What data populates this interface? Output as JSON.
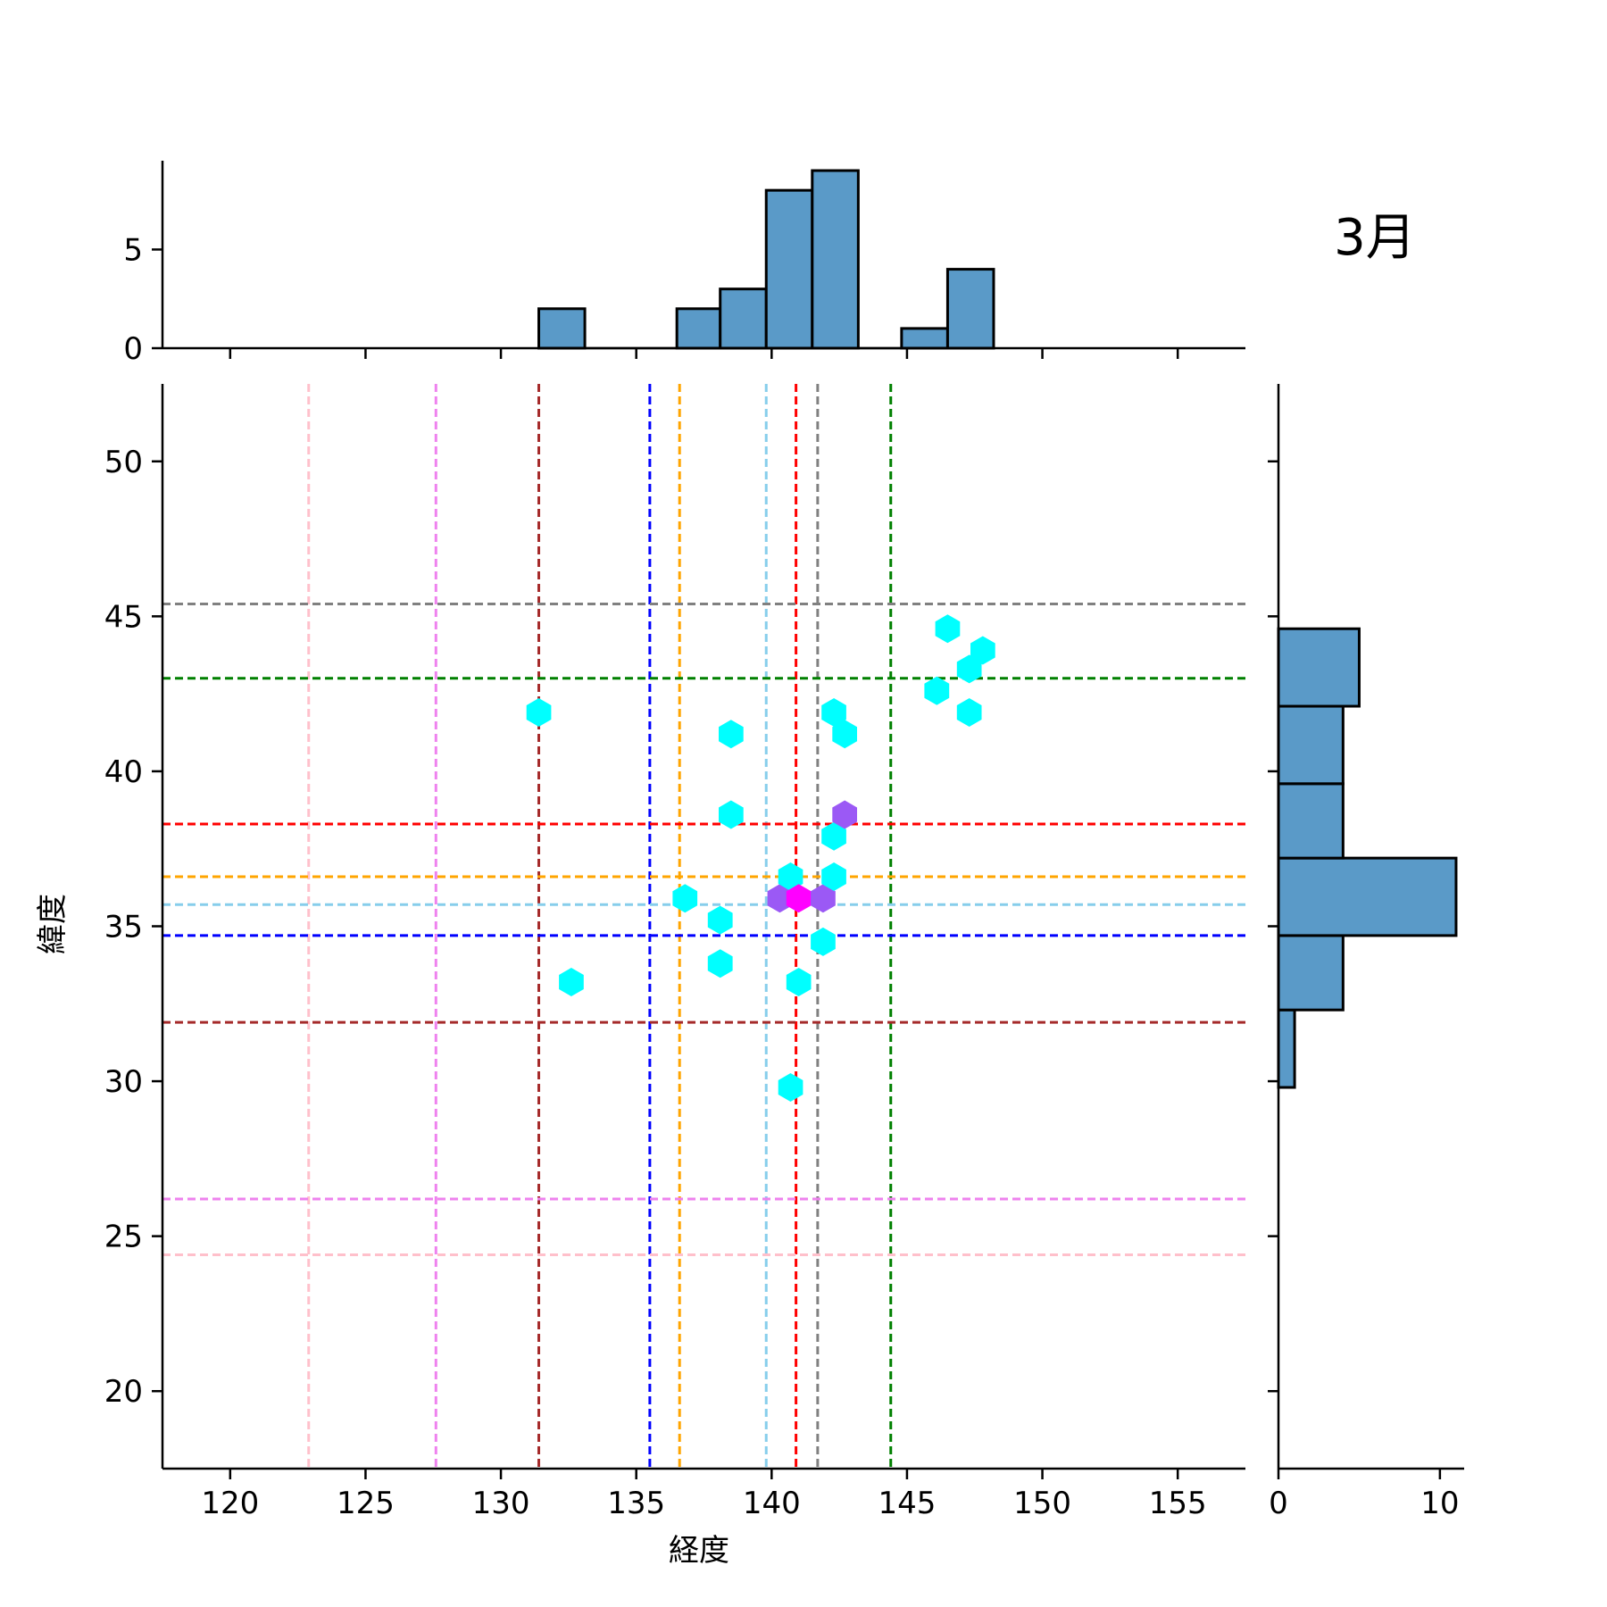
{
  "chart_data": {
    "type": "hexbin-joint",
    "title": "3月",
    "xlabel": "経度",
    "ylabel": "緯度",
    "xlim": [
      117.5,
      157.5
    ],
    "ylim": [
      17.5,
      52.5
    ],
    "x_ticks": [
      120,
      125,
      130,
      135,
      140,
      145,
      150,
      155
    ],
    "y_ticks": [
      20,
      25,
      30,
      35,
      40,
      45,
      50
    ],
    "grid": false,
    "hexbins": [
      {
        "x": 131.4,
        "y": 41.9,
        "count": 1
      },
      {
        "x": 132.6,
        "y": 33.2,
        "count": 1
      },
      {
        "x": 136.8,
        "y": 35.9,
        "count": 1
      },
      {
        "x": 138.1,
        "y": 35.2,
        "count": 1
      },
      {
        "x": 138.1,
        "y": 33.8,
        "count": 1
      },
      {
        "x": 138.5,
        "y": 41.2,
        "count": 1
      },
      {
        "x": 138.5,
        "y": 38.6,
        "count": 1
      },
      {
        "x": 140.3,
        "y": 35.9,
        "count": 2
      },
      {
        "x": 140.7,
        "y": 36.6,
        "count": 1
      },
      {
        "x": 140.7,
        "y": 29.8,
        "count": 1
      },
      {
        "x": 141.0,
        "y": 35.9,
        "count": 3
      },
      {
        "x": 141.0,
        "y": 33.2,
        "count": 1
      },
      {
        "x": 141.9,
        "y": 35.9,
        "count": 2
      },
      {
        "x": 141.9,
        "y": 34.5,
        "count": 1
      },
      {
        "x": 142.3,
        "y": 41.9,
        "count": 1
      },
      {
        "x": 142.3,
        "y": 37.9,
        "count": 1
      },
      {
        "x": 142.3,
        "y": 36.6,
        "count": 1
      },
      {
        "x": 142.7,
        "y": 41.2,
        "count": 1
      },
      {
        "x": 142.7,
        "y": 38.6,
        "count": 2
      },
      {
        "x": 146.1,
        "y": 42.6,
        "count": 1
      },
      {
        "x": 146.5,
        "y": 44.6,
        "count": 1
      },
      {
        "x": 147.3,
        "y": 43.3,
        "count": 1
      },
      {
        "x": 147.3,
        "y": 41.9,
        "count": 1
      },
      {
        "x": 147.8,
        "y": 43.9,
        "count": 1
      }
    ],
    "hexbin_colors": {
      "1": "#00ffff",
      "2": "#9b59f5",
      "3": "#ff00ff"
    },
    "reference_lines": [
      {
        "color": "#ffc0cb",
        "x": 122.9,
        "y": 24.4
      },
      {
        "color": "#ee82ee",
        "x": 127.6,
        "y": 26.2
      },
      {
        "color": "#a52a2a",
        "x": 131.4,
        "y": 31.9
      },
      {
        "color": "#0000ff",
        "x": 135.5,
        "y": 34.7
      },
      {
        "color": "#ffa500",
        "x": 136.6,
        "y": 36.6
      },
      {
        "color": "#87ceeb",
        "x": 139.8,
        "y": 35.7
      },
      {
        "color": "#ff0000",
        "x": 140.9,
        "y": 38.3
      },
      {
        "color": "#808080",
        "x": 141.7,
        "y": 45.4
      },
      {
        "color": "#008000",
        "x": 144.4,
        "y": 43.0
      }
    ],
    "top_histogram": {
      "bin_edges": [
        131.4,
        133.1,
        134.8,
        136.5,
        138.1,
        139.8,
        141.5,
        143.2,
        144.8,
        146.5,
        148.2
      ],
      "counts": [
        2,
        0,
        0,
        2,
        3,
        8,
        9,
        0,
        1,
        4
      ],
      "ylim": [
        0,
        9.5
      ],
      "y_ticks": [
        0,
        5
      ],
      "color": "#5a9ac8"
    },
    "right_histogram": {
      "bin_edges": [
        29.8,
        32.3,
        34.7,
        37.2,
        39.6,
        42.1,
        44.6
      ],
      "counts": [
        1,
        4,
        11,
        4,
        4,
        5
      ],
      "xlim": [
        0,
        11.5
      ],
      "x_ticks": [
        0,
        10
      ],
      "color": "#5a9ac8"
    }
  }
}
